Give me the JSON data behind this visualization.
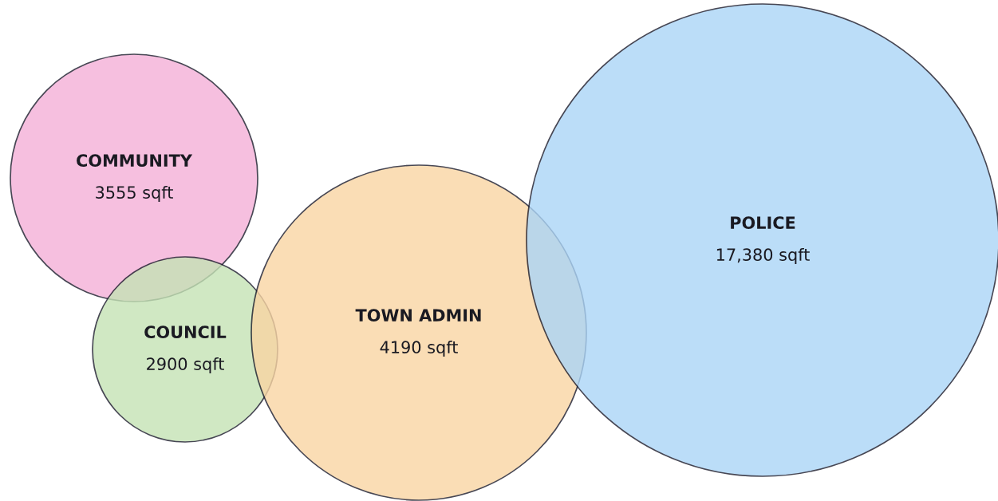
{
  "chart_data": {
    "type": "other",
    "categories": [
      "COMMUNITY",
      "COUNCIL",
      "TOWN ADMIN",
      "POLICE"
    ],
    "values": [
      3555,
      2900,
      4190,
      17380
    ],
    "value_labels": [
      "3555 sqft",
      "2900 sqft",
      "4190 sqft",
      "17,380 sqft"
    ],
    "colors": [
      "#f5b0d8",
      "#c5e3b5",
      "#f9d5a3",
      "#abd5f7"
    ]
  }
}
